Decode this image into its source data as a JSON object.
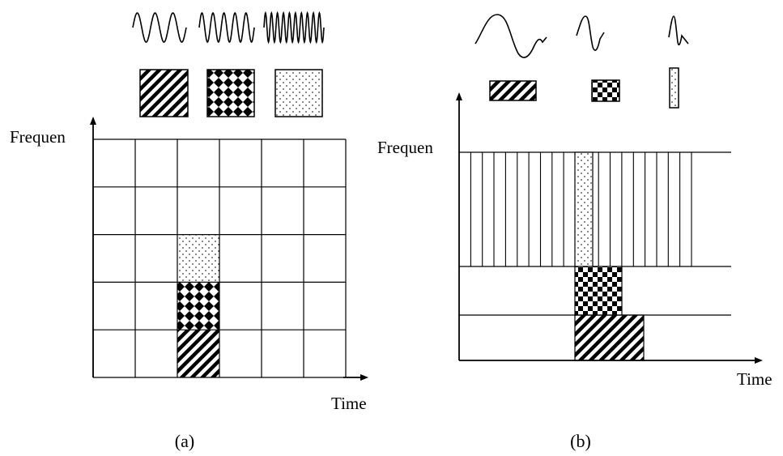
{
  "panel_a": {
    "y_axis_label": "Frequen",
    "x_axis_label": "Time",
    "caption": "(a)",
    "grid": {
      "columns": 6,
      "rows": 5
    },
    "highlighted_cells": [
      {
        "col": 2,
        "row": 2,
        "pattern": "dots"
      },
      {
        "col": 2,
        "row": 3,
        "pattern": "diamonds"
      },
      {
        "col": 2,
        "row": 4,
        "pattern": "diagonal"
      }
    ],
    "legend_patterns": [
      "diagonal",
      "diamonds",
      "dots"
    ],
    "wave_cycles": [
      3,
      5,
      10
    ]
  },
  "panel_b": {
    "y_axis_label": "Frequen",
    "x_axis_label": "Time",
    "caption": "(b)",
    "legend_patterns": [
      "diagonal",
      "checker",
      "dots"
    ],
    "wave_shapes": [
      "wide",
      "medium",
      "narrow"
    ],
    "top_band_divisions": 20
  }
}
